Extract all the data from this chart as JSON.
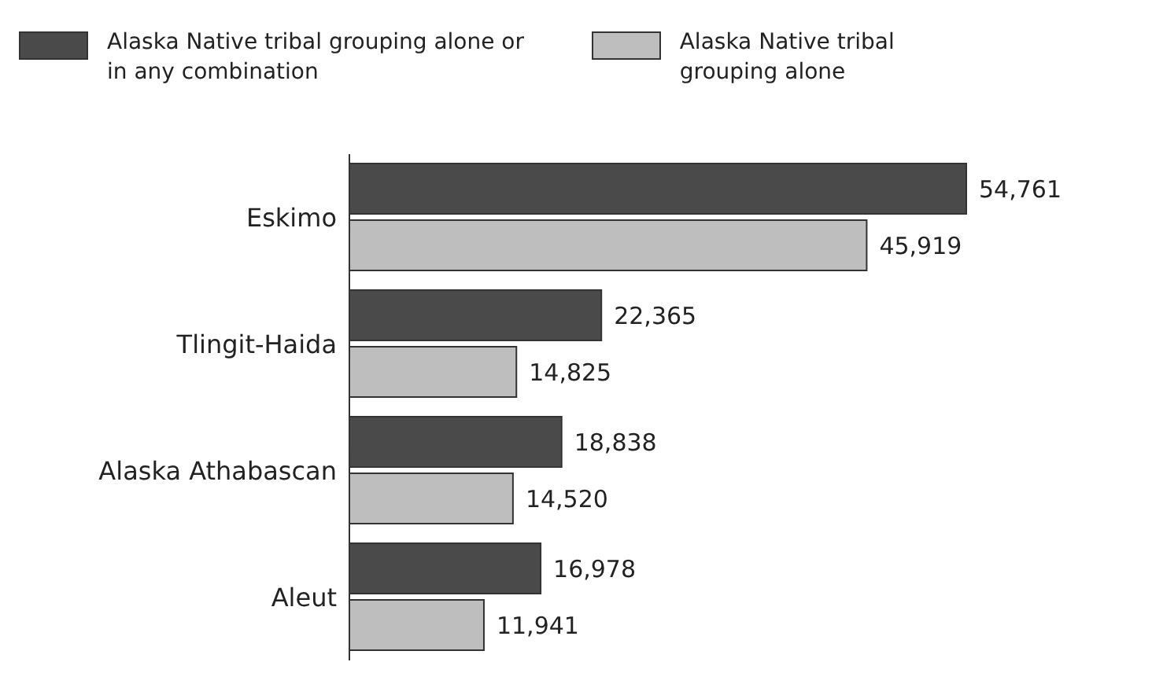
{
  "chart_data": {
    "type": "bar",
    "orientation": "horizontal",
    "categories": [
      "Eskimo",
      "Tlingit-Haida",
      "Alaska Athabascan",
      "Aleut"
    ],
    "series": [
      {
        "name": "Alaska Native tribal grouping alone or in any combination",
        "color": "#4a4a4a",
        "values": [
          54761,
          22365,
          18838,
          16978
        ],
        "value_labels": [
          "54,761",
          "22,365",
          "18,838",
          "16,978"
        ]
      },
      {
        "name": "Alaska Native tribal grouping alone",
        "color": "#bebebe",
        "values": [
          45919,
          14825,
          14520,
          11941
        ],
        "value_labels": [
          "45,919",
          "14,825",
          "14,520",
          "11,941"
        ]
      }
    ],
    "legend": "top left"
  }
}
